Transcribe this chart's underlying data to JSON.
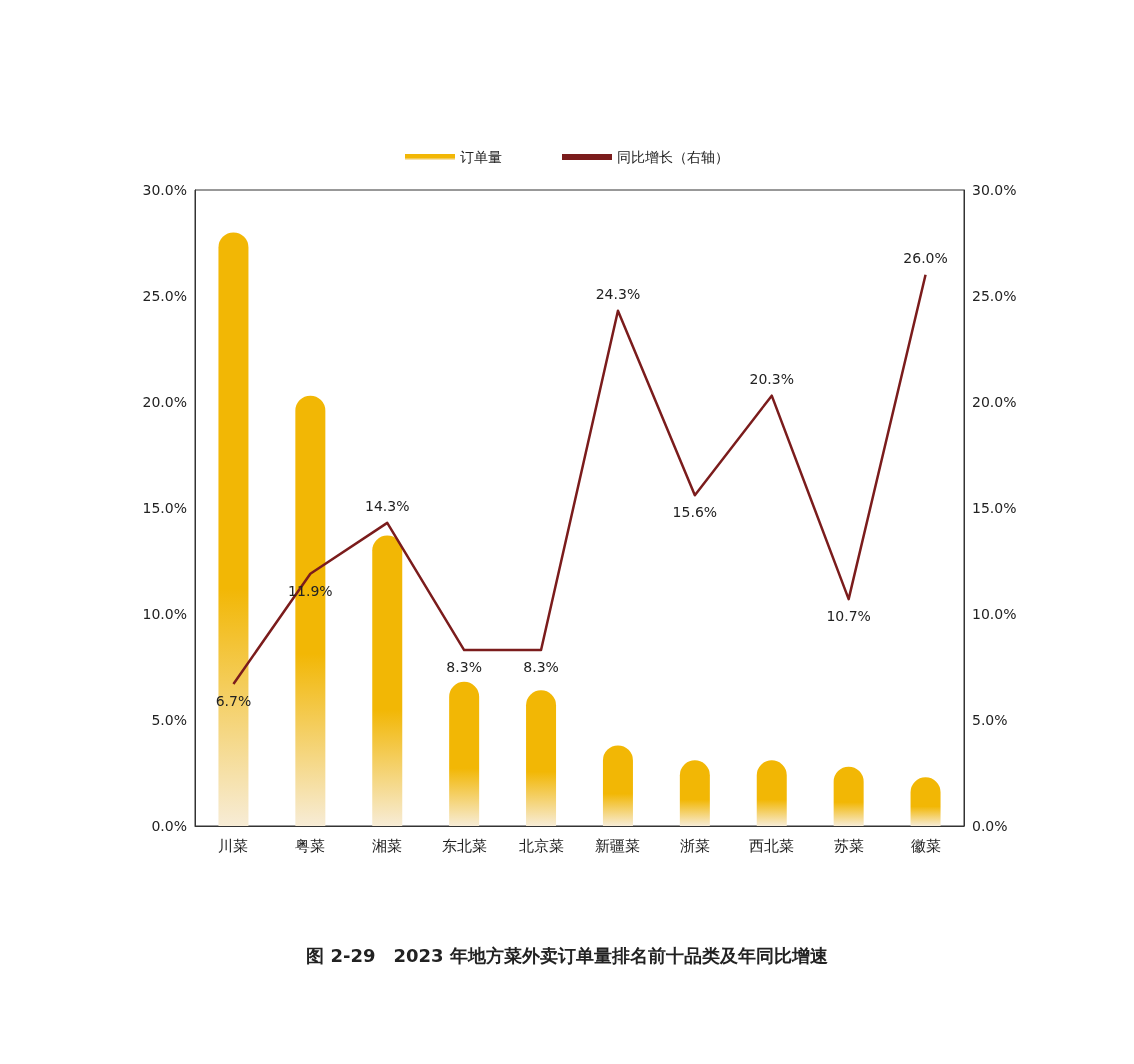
{
  "chart_data": {
    "type": "bar",
    "title": "图 2-29　2023 年地方菜外卖订单量排名前十品类及年同比增速",
    "categories": [
      "川菜",
      "粤菜",
      "湘菜",
      "东北菜",
      "北京菜",
      "新疆菜",
      "浙菜",
      "西北菜",
      "苏菜",
      "徽菜"
    ],
    "series": [
      {
        "name": "订单量",
        "color": "#f2b705",
        "values": [
          28.0,
          20.3,
          13.7,
          6.8,
          6.4,
          3.8,
          3.1,
          3.1,
          2.8,
          2.3
        ]
      },
      {
        "name": "同比增长（右轴）",
        "type": "line",
        "axis": "y2",
        "color": "#7b1c1c",
        "values": [
          6.7,
          11.9,
          14.3,
          8.3,
          8.3,
          24.3,
          15.6,
          20.3,
          10.7,
          26.0
        ],
        "value_labels": [
          "6.7%",
          "11.9%",
          "14.3%",
          "8.3%",
          "8.3%",
          "24.3%",
          "15.6%",
          "20.3%",
          "10.7%",
          "26.0%"
        ]
      }
    ],
    "ylim": [
      0,
      30
    ],
    "yticks": [
      {
        "value": 0,
        "label": "0.0%"
      },
      {
        "value": 5,
        "label": "5.0%"
      },
      {
        "value": 10,
        "label": "10.0%"
      },
      {
        "value": 15,
        "label": "15.0%"
      },
      {
        "value": 20,
        "label": "20.0%"
      },
      {
        "value": 25,
        "label": "25.0%"
      },
      {
        "value": 30,
        "label": "30.0%"
      }
    ],
    "y2lim": [
      0,
      30
    ],
    "y2ticks": [
      {
        "value": 0,
        "label": "0.0%"
      },
      {
        "value": 5,
        "label": "5.0%"
      },
      {
        "value": 10,
        "label": "10.0%"
      },
      {
        "value": 15,
        "label": "15.0%"
      },
      {
        "value": 20,
        "label": "20.0%"
      },
      {
        "value": 25,
        "label": "25.0%"
      },
      {
        "value": 30,
        "label": "30.0%"
      }
    ],
    "grid": false,
    "legend": "top"
  }
}
